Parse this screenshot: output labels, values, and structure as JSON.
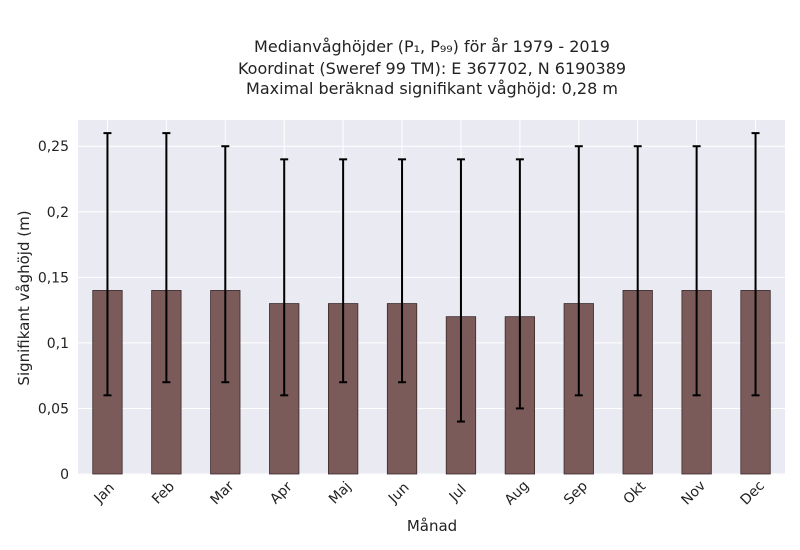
{
  "chart_data": {
    "type": "bar",
    "title_lines": [
      "Medianvåghöjder (P₁, P₉₉) för år 1979 - 2019",
      "Koordinat (Sweref 99 TM): E 367702, N 6190389",
      "Maximal beräknad signifikant våghöjd: 0,28 m"
    ],
    "xlabel": "Månad",
    "ylabel": "Signifikant våghöjd (m)",
    "categories": [
      "Jan",
      "Feb",
      "Mar",
      "Apr",
      "Maj",
      "Jun",
      "Jul",
      "Aug",
      "Sep",
      "Okt",
      "Nov",
      "Dec"
    ],
    "values": [
      0.14,
      0.14,
      0.14,
      0.13,
      0.13,
      0.13,
      0.12,
      0.12,
      0.13,
      0.14,
      0.14,
      0.14
    ],
    "error_low": [
      0.06,
      0.07,
      0.07,
      0.06,
      0.07,
      0.07,
      0.04,
      0.05,
      0.06,
      0.06,
      0.06,
      0.06
    ],
    "error_high": [
      0.26,
      0.26,
      0.25,
      0.24,
      0.24,
      0.24,
      0.24,
      0.24,
      0.25,
      0.25,
      0.25,
      0.26
    ],
    "ylim": [
      0,
      0.27
    ],
    "yticks": [
      0,
      0.05,
      0.1,
      0.15,
      0.2,
      0.25
    ],
    "ytick_labels": [
      "0",
      "0,05",
      "0,1",
      "0,15",
      "0,2",
      "0,25"
    ],
    "grid": true,
    "colors": {
      "bar_fill": "#7b5a5a",
      "bar_edge": "#3a2a2a",
      "error_bar": "#000000",
      "plot_background": "#eaeaf2",
      "grid": "#ffffff"
    }
  }
}
